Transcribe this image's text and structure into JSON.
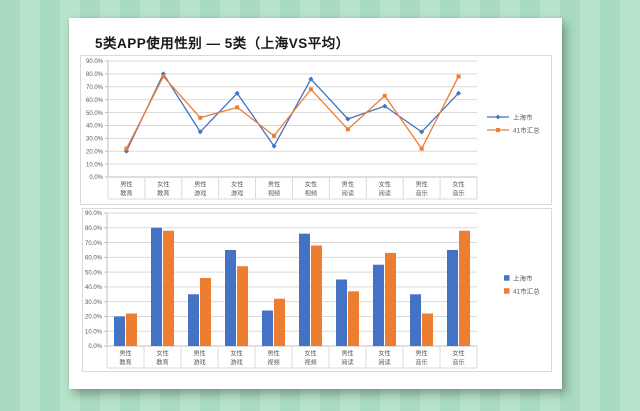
{
  "page": {
    "title": "5类APP使用性别 — 5类（上海VS平均）"
  },
  "colors": {
    "shanghai_blue": "#4472C4",
    "total_orange": "#ED7D31",
    "gridline": "#D9D9D9",
    "axis_line": "#BFBFBF",
    "axis_text": "#595959",
    "card_background": "#FFFFFF",
    "background_stripe_dark": "#A9DBC0",
    "background_stripe_light": "#B7E3CB"
  },
  "chart_data": [
    {
      "id": "gender-usage-line",
      "type": "line",
      "title": "",
      "categories": [
        [
          "男性",
          "教育"
        ],
        [
          "女性",
          "教育"
        ],
        [
          "男性",
          "游戏"
        ],
        [
          "女性",
          "游戏"
        ],
        [
          "男性",
          "视频"
        ],
        [
          "女性",
          "视频"
        ],
        [
          "男性",
          "阅读"
        ],
        [
          "女性",
          "阅读"
        ],
        [
          "男性",
          "音乐"
        ],
        [
          "女性",
          "音乐"
        ]
      ],
      "series": [
        {
          "name": "上海市",
          "color": "#4472C4",
          "marker": "diamond",
          "values": [
            20,
            80,
            35,
            65,
            24,
            76,
            45,
            55,
            35,
            65
          ]
        },
        {
          "name": "41市汇总",
          "color": "#ED7D31",
          "marker": "square",
          "values": [
            22,
            78,
            46,
            54,
            32,
            68,
            37,
            63,
            22,
            78
          ]
        }
      ],
      "ylim": [
        0,
        90
      ],
      "ytick_step": 10,
      "ytick_labels": [
        "0.0%",
        "10.0%",
        "20.0%",
        "30.0%",
        "40.0%",
        "50.0%",
        "60.0%",
        "70.0%",
        "80.0%",
        "90.0%"
      ],
      "ylabel": "",
      "xlabel": "",
      "grid": true,
      "legend_position": "right"
    },
    {
      "id": "gender-usage-bar",
      "type": "bar",
      "title": "",
      "categories": [
        [
          "男性",
          "教育"
        ],
        [
          "女性",
          "教育"
        ],
        [
          "男性",
          "游戏"
        ],
        [
          "女性",
          "游戏"
        ],
        [
          "男性",
          "视频"
        ],
        [
          "女性",
          "视频"
        ],
        [
          "男性",
          "阅读"
        ],
        [
          "女性",
          "阅读"
        ],
        [
          "男性",
          "音乐"
        ],
        [
          "女性",
          "音乐"
        ]
      ],
      "series": [
        {
          "name": "上海市",
          "color": "#4472C4",
          "values": [
            20,
            80,
            35,
            65,
            24,
            76,
            45,
            55,
            35,
            65
          ]
        },
        {
          "name": "41市汇总",
          "color": "#ED7D31",
          "values": [
            22,
            78,
            46,
            54,
            32,
            68,
            37,
            63,
            22,
            78
          ]
        }
      ],
      "ylim": [
        0,
        90
      ],
      "ytick_step": 10,
      "ytick_labels": [
        "0.0%",
        "10.0%",
        "20.0%",
        "30.0%",
        "40.0%",
        "50.0%",
        "60.0%",
        "70.0%",
        "80.0%",
        "90.0%"
      ],
      "ylabel": "",
      "xlabel": "",
      "grid": true,
      "legend_position": "right"
    }
  ]
}
